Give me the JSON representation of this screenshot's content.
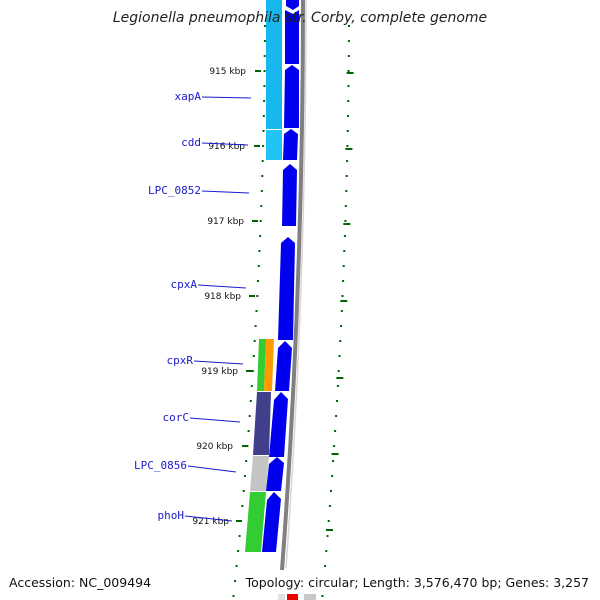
{
  "title": "Legionella pneumophila str. Corby, complete genome",
  "accession": "Accession: NC_009494",
  "topology": "Topology: circular; Length: 3,576,470 bp; Genes: 3,257",
  "ticks": [
    "915 kbp",
    "916 kbp",
    "917 kbp",
    "918 kbp",
    "919 kbp",
    "920 kbp",
    "921 kbp"
  ],
  "genes": [
    {
      "name": "xapA",
      "color": "#0000ee"
    },
    {
      "name": "cdd",
      "color": "#0000ee"
    },
    {
      "name": "LPC_0852",
      "color": "#0000ee"
    },
    {
      "name": "cpxA",
      "color": "#0000ee"
    },
    {
      "name": "cpxR",
      "color": "#0000ee"
    },
    {
      "name": "corC",
      "color": "#0000ee"
    },
    {
      "name": "LPC_0856",
      "color": "#0000ee"
    },
    {
      "name": "phoH",
      "color": "#0000ee"
    }
  ],
  "colors": {
    "gene_arrow": "#0000ee",
    "cog_cyan": "#17b8ee",
    "cog_green": "#33cc33",
    "cog_orange": "#ff9900",
    "cog_purple": "#3f3f8c",
    "cog_gray": "#c4c4c4",
    "backbone": "#808080",
    "tick_green": "#006400",
    "label_blue": "#1a1acc"
  }
}
